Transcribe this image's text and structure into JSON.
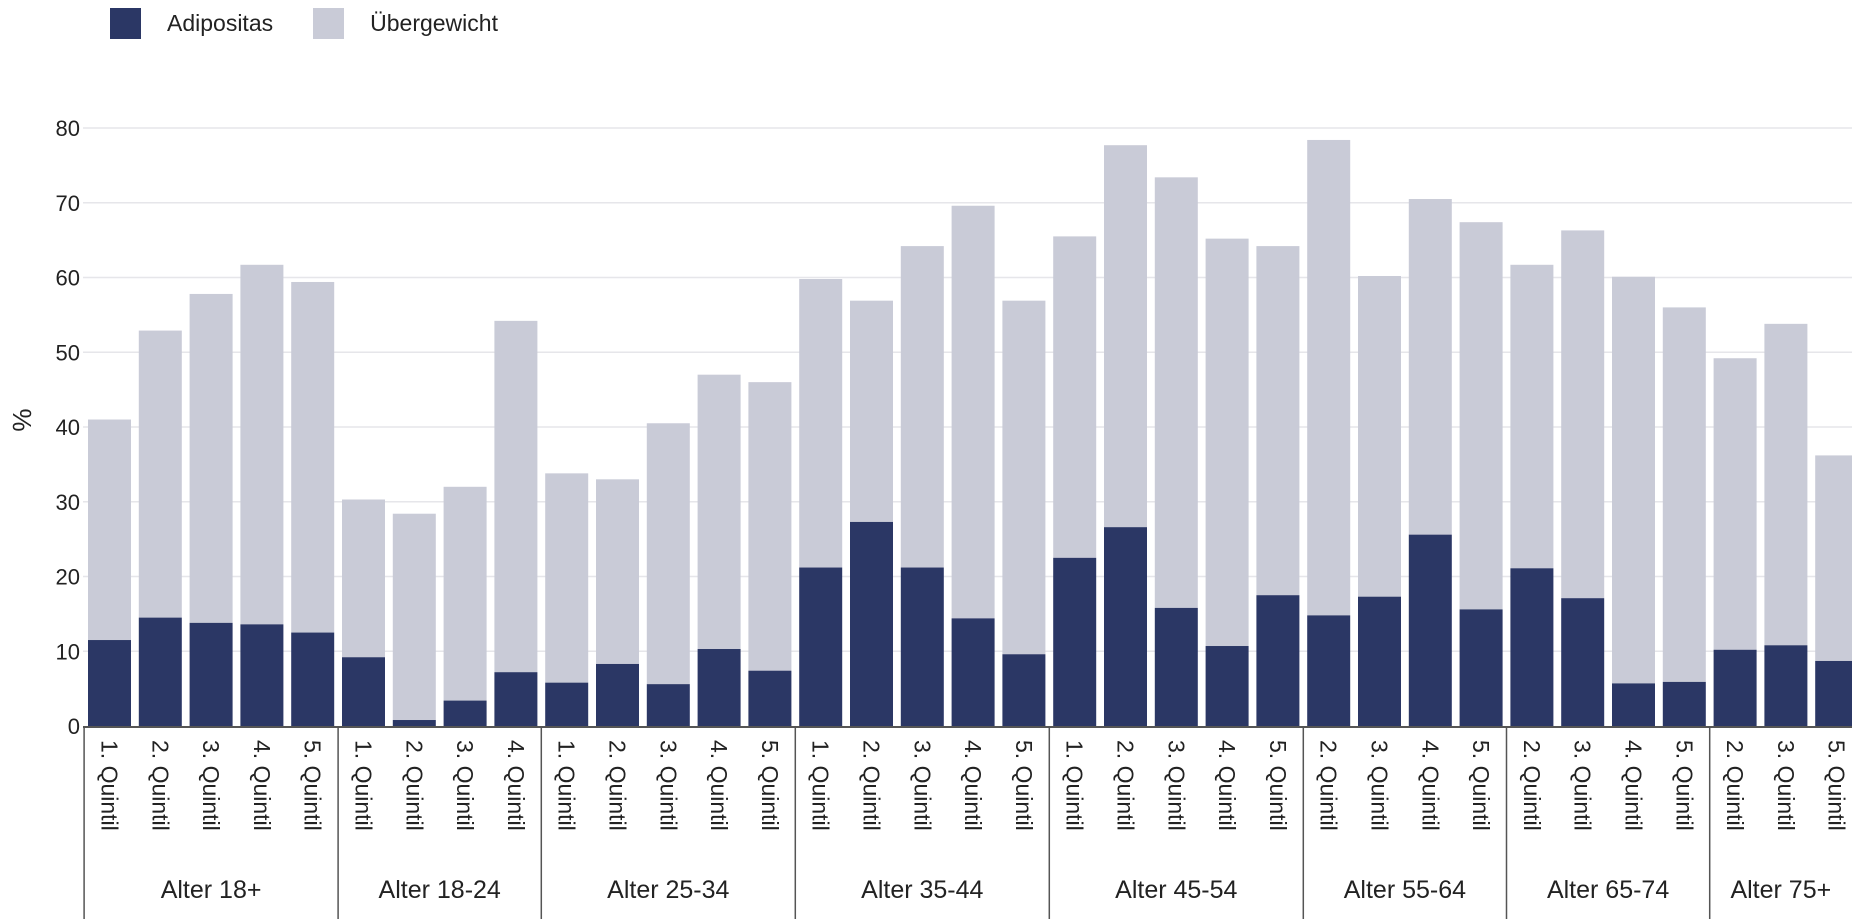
{
  "chart_data": {
    "type": "bar",
    "stacked": true,
    "ylabel": "%",
    "ylim": [
      0,
      80
    ],
    "yticks": [
      0,
      10,
      20,
      30,
      40,
      50,
      60,
      70,
      80
    ],
    "grid": true,
    "legend_position": "top-left",
    "series": [
      {
        "name": "Adipositas",
        "color": "#2b3765"
      },
      {
        "name": "Übergewicht",
        "color": "#c9cbd7"
      }
    ],
    "groups": [
      {
        "label": "Alter 18+",
        "bars": [
          {
            "category": "1. Quintil",
            "adipositas": 11.5,
            "total": 41.0
          },
          {
            "category": "2. Quintil",
            "adipositas": 14.5,
            "total": 52.9
          },
          {
            "category": "3. Quintil",
            "adipositas": 13.8,
            "total": 57.8
          },
          {
            "category": "4. Quintil",
            "adipositas": 13.6,
            "total": 61.7
          },
          {
            "category": "5. Quintil",
            "adipositas": 12.5,
            "total": 59.4
          }
        ]
      },
      {
        "label": "Alter 18-24",
        "bars": [
          {
            "category": "1. Quintil",
            "adipositas": 9.2,
            "total": 30.3
          },
          {
            "category": "2. Quintil",
            "adipositas": 0.8,
            "total": 28.4
          },
          {
            "category": "3. Quintil",
            "adipositas": 3.4,
            "total": 32.0
          },
          {
            "category": "4. Quintil",
            "adipositas": 7.2,
            "total": 54.2
          }
        ]
      },
      {
        "label": "Alter 25-34",
        "bars": [
          {
            "category": "1. Quintil",
            "adipositas": 5.8,
            "total": 33.8
          },
          {
            "category": "2. Quintil",
            "adipositas": 8.3,
            "total": 33.0
          },
          {
            "category": "3. Quintil",
            "adipositas": 5.6,
            "total": 40.5
          },
          {
            "category": "4. Quintil",
            "adipositas": 10.3,
            "total": 47.0
          },
          {
            "category": "5. Quintil",
            "adipositas": 7.4,
            "total": 46.0
          }
        ]
      },
      {
        "label": "Alter 35-44",
        "bars": [
          {
            "category": "1. Quintil",
            "adipositas": 21.2,
            "total": 59.8
          },
          {
            "category": "2. Quintil",
            "adipositas": 27.3,
            "total": 56.9
          },
          {
            "category": "3. Quintil",
            "adipositas": 21.2,
            "total": 64.2
          },
          {
            "category": "4. Quintil",
            "adipositas": 14.4,
            "total": 69.6
          },
          {
            "category": "5. Quintil",
            "adipositas": 9.6,
            "total": 56.9
          }
        ]
      },
      {
        "label": "Alter 45-54",
        "bars": [
          {
            "category": "1. Quintil",
            "adipositas": 22.5,
            "total": 65.5
          },
          {
            "category": "2. Quintil",
            "adipositas": 26.6,
            "total": 77.7
          },
          {
            "category": "3. Quintil",
            "adipositas": 15.8,
            "total": 73.4
          },
          {
            "category": "4. Quintil",
            "adipositas": 10.7,
            "total": 65.2
          },
          {
            "category": "5. Quintil",
            "adipositas": 17.5,
            "total": 64.2
          }
        ]
      },
      {
        "label": "Alter 55-64",
        "bars": [
          {
            "category": "2. Quintil",
            "adipositas": 14.8,
            "total": 78.4
          },
          {
            "category": "3. Quintil",
            "adipositas": 17.3,
            "total": 60.2
          },
          {
            "category": "4. Quintil",
            "adipositas": 25.6,
            "total": 70.5
          },
          {
            "category": "5. Quintil",
            "adipositas": 15.6,
            "total": 67.4
          }
        ]
      },
      {
        "label": "Alter 65-74",
        "bars": [
          {
            "category": "2. Quintil",
            "adipositas": 21.1,
            "total": 61.7
          },
          {
            "category": "3. Quintil",
            "adipositas": 17.1,
            "total": 66.3
          },
          {
            "category": "4. Quintil",
            "adipositas": 5.7,
            "total": 60.1
          },
          {
            "category": "5. Quintil",
            "adipositas": 5.9,
            "total": 56.0
          }
        ]
      },
      {
        "label": "Alter 75+",
        "bars": [
          {
            "category": "2. Quintil",
            "adipositas": 10.2,
            "total": 49.2
          },
          {
            "category": "3. Quintil",
            "adipositas": 10.8,
            "total": 53.8
          },
          {
            "category": "5. Quintil",
            "adipositas": 8.7,
            "total": 36.2
          }
        ]
      }
    ]
  }
}
